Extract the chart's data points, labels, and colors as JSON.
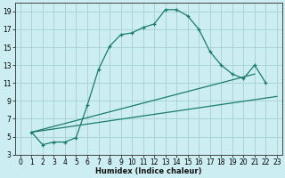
{
  "title": "",
  "xlabel": "Humidex (Indice chaleur)",
  "bg_color": "#cceef2",
  "grid_color": "#aad4d8",
  "line_color": "#1a7a6e",
  "xlim": [
    -0.5,
    23.5
  ],
  "ylim": [
    3,
    20
  ],
  "xticks": [
    0,
    1,
    2,
    3,
    4,
    5,
    6,
    7,
    8,
    9,
    10,
    11,
    12,
    13,
    14,
    15,
    16,
    17,
    18,
    19,
    20,
    21,
    22,
    23
  ],
  "yticks": [
    3,
    5,
    7,
    9,
    11,
    13,
    15,
    17,
    19
  ],
  "curve_x": [
    1,
    2,
    3,
    4,
    5,
    6,
    7,
    8,
    9,
    10,
    11,
    12,
    13,
    14,
    15,
    16,
    17,
    18,
    19,
    20,
    21,
    22
  ],
  "curve_y": [
    5.5,
    4.1,
    4.4,
    4.4,
    4.9,
    8.5,
    12.5,
    15.1,
    16.4,
    16.6,
    17.2,
    17.6,
    19.2,
    19.2,
    18.5,
    17.0,
    14.5,
    13.0,
    12.0,
    11.5,
    13.0,
    11.0
  ],
  "line1_x": [
    1,
    23
  ],
  "line1_y": [
    5.5,
    9.5
  ],
  "line2_x": [
    1,
    21
  ],
  "line2_y": [
    5.5,
    12.0
  ],
  "tick_fontsize": 5.5,
  "xlabel_fontsize": 6.0
}
